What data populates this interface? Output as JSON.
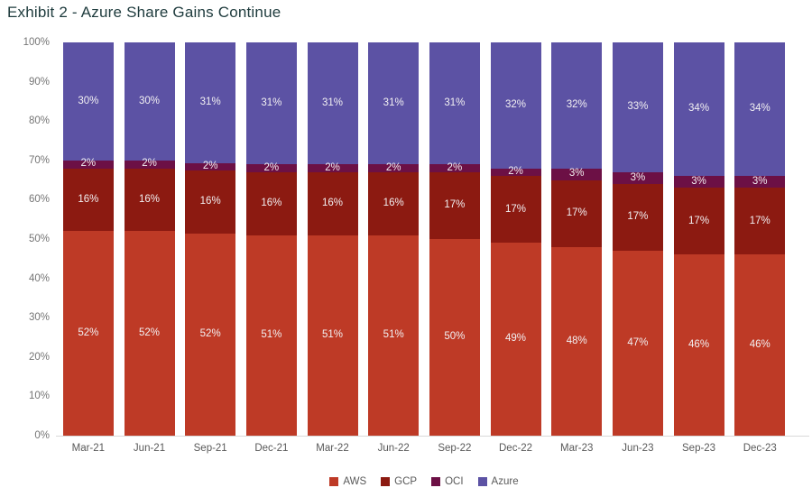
{
  "title": "Exhibit 2 - Azure Share Gains Continue",
  "chart_data": {
    "type": "bar",
    "subtype": "100%-stacked-column",
    "title": "Exhibit 2 - Azure Share Gains Continue",
    "title_color": "#1E3B3D",
    "categories": [
      "Mar-21",
      "Jun-21",
      "Sep-21",
      "Dec-21",
      "Mar-22",
      "Jun-22",
      "Sep-22",
      "Dec-22",
      "Mar-23",
      "Jun-23",
      "Sep-23",
      "Dec-23"
    ],
    "series": [
      {
        "name": "AWS",
        "color": "#BE3A26",
        "values": [
          52,
          52,
          52,
          51,
          51,
          51,
          50,
          49,
          48,
          47,
          46,
          46
        ]
      },
      {
        "name": "GCP",
        "color": "#8C1A11",
        "values": [
          16,
          16,
          16,
          16,
          16,
          16,
          17,
          17,
          17,
          17,
          17,
          17
        ]
      },
      {
        "name": "OCI",
        "color": "#6C1045",
        "values": [
          2,
          2,
          2,
          2,
          2,
          2,
          2,
          2,
          3,
          3,
          3,
          3
        ]
      },
      {
        "name": "Azure",
        "color": "#5C52A4",
        "values": [
          30,
          30,
          31,
          31,
          31,
          31,
          31,
          32,
          32,
          33,
          34,
          34
        ]
      }
    ],
    "stack_order": "bottom-to-top: AWS, GCP, OCI, Azure",
    "label_suffix": "%",
    "data_label_color": "#F2F0F2",
    "y_ticks": [
      "0%",
      "10%",
      "20%",
      "30%",
      "40%",
      "50%",
      "60%",
      "70%",
      "80%",
      "90%",
      "100%"
    ],
    "ylim": [
      0,
      100
    ],
    "grid": false,
    "axis_line_color": "#D9D9D9",
    "tick_label_color": "#757575",
    "category_label_color": "#595959",
    "legend_position": "bottom",
    "legend_entries": [
      "AWS",
      "GCP",
      "OCI",
      "Azure"
    ]
  }
}
